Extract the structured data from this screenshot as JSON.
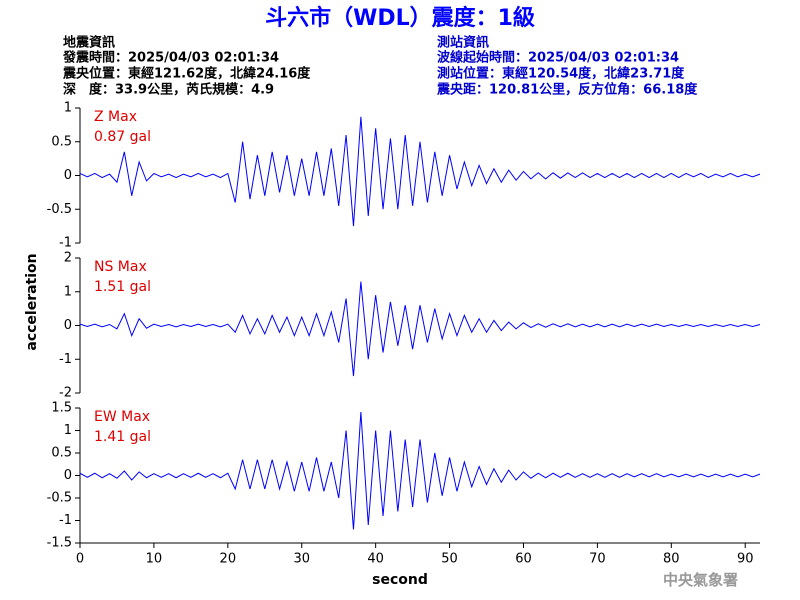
{
  "header": {
    "title": "斗六市（WDL）震度：1級",
    "left": [
      "地震資訊",
      "發震時間：2025/04/03 02:01:34",
      "震央位置：東經121.62度，北緯24.16度",
      "深　度：33.9公里，芮氏規模：4.9"
    ],
    "right": [
      "測站資訊",
      "波線起始時間：2025/04/03 02:01:34",
      "測站位置：東經120.54度，北緯23.71度",
      "震央距：120.81公里，反方位角：66.18度"
    ]
  },
  "y_axis_label": "acceleration",
  "footer": "中央氣象署",
  "chart_data": [
    {
      "type": "line",
      "annotation": [
        "Z Max",
        "0.87 gal"
      ],
      "color": "#0000ff",
      "xlim": [
        0,
        92
      ],
      "ylim": [
        -1,
        1
      ],
      "yticks": [
        -1,
        -0.5,
        0,
        0.5,
        1
      ],
      "x": [
        0,
        1,
        2,
        3,
        4,
        5,
        6,
        7,
        8,
        9,
        10,
        11,
        12,
        13,
        14,
        15,
        16,
        17,
        18,
        19,
        20,
        21,
        22,
        23,
        24,
        25,
        26,
        27,
        28,
        29,
        30,
        31,
        32,
        33,
        34,
        35,
        36,
        37,
        38,
        39,
        40,
        41,
        42,
        43,
        44,
        45,
        46,
        47,
        48,
        49,
        50,
        51,
        52,
        53,
        54,
        55,
        56,
        57,
        58,
        59,
        60,
        61,
        62,
        63,
        64,
        65,
        66,
        67,
        68,
        69,
        70,
        71,
        72,
        73,
        74,
        75,
        76,
        77,
        78,
        79,
        80,
        81,
        82,
        83,
        84,
        85,
        86,
        87,
        88,
        89,
        90,
        91,
        92
      ],
      "values": [
        0.03,
        -0.02,
        0.03,
        -0.03,
        0.02,
        -0.1,
        0.35,
        -0.3,
        0.2,
        -0.08,
        0.03,
        -0.02,
        0.02,
        -0.03,
        0.02,
        -0.02,
        0.03,
        -0.02,
        0.02,
        -0.03,
        0.03,
        -0.4,
        0.5,
        -0.35,
        0.3,
        -0.3,
        0.35,
        -0.25,
        0.3,
        -0.3,
        0.25,
        -0.3,
        0.35,
        -0.3,
        0.4,
        -0.45,
        0.6,
        -0.75,
        0.87,
        -0.6,
        0.7,
        -0.5,
        0.55,
        -0.5,
        0.6,
        -0.45,
        0.5,
        -0.4,
        0.35,
        -0.3,
        0.3,
        -0.2,
        0.2,
        -0.15,
        0.15,
        -0.12,
        0.1,
        -0.1,
        0.08,
        -0.07,
        0.06,
        -0.05,
        0.04,
        -0.05,
        0.04,
        -0.04,
        0.04,
        -0.03,
        0.04,
        -0.03,
        0.03,
        -0.03,
        0.03,
        -0.03,
        0.03,
        -0.03,
        0.03,
        -0.03,
        0.03,
        -0.03,
        0.03,
        -0.03,
        0.03,
        -0.02,
        0.03,
        -0.03,
        0.02,
        -0.02,
        0.03,
        -0.02,
        0.02,
        -0.02,
        0.02
      ]
    },
    {
      "type": "line",
      "annotation": [
        "NS Max",
        "1.51 gal"
      ],
      "color": "#0000ff",
      "xlim": [
        0,
        92
      ],
      "ylim": [
        -2,
        2
      ],
      "yticks": [
        -2,
        -1,
        0,
        1,
        2
      ],
      "x": [
        0,
        1,
        2,
        3,
        4,
        5,
        6,
        7,
        8,
        9,
        10,
        11,
        12,
        13,
        14,
        15,
        16,
        17,
        18,
        19,
        20,
        21,
        22,
        23,
        24,
        25,
        26,
        27,
        28,
        29,
        30,
        31,
        32,
        33,
        34,
        35,
        36,
        37,
        38,
        39,
        40,
        41,
        42,
        43,
        44,
        45,
        46,
        47,
        48,
        49,
        50,
        51,
        52,
        53,
        54,
        55,
        56,
        57,
        58,
        59,
        60,
        61,
        62,
        63,
        64,
        65,
        66,
        67,
        68,
        69,
        70,
        71,
        72,
        73,
        74,
        75,
        76,
        77,
        78,
        79,
        80,
        81,
        82,
        83,
        84,
        85,
        86,
        87,
        88,
        89,
        90,
        91,
        92
      ],
      "values": [
        0.04,
        -0.03,
        0.04,
        -0.04,
        0.03,
        -0.1,
        0.35,
        -0.3,
        0.2,
        -0.08,
        0.04,
        -0.03,
        0.03,
        -0.04,
        0.03,
        -0.03,
        0.04,
        -0.03,
        0.03,
        -0.04,
        0.04,
        -0.2,
        0.3,
        -0.25,
        0.2,
        -0.25,
        0.3,
        -0.2,
        0.25,
        -0.3,
        0.25,
        -0.3,
        0.35,
        -0.3,
        0.4,
        -0.5,
        0.8,
        -1.5,
        1.3,
        -1.0,
        0.9,
        -0.8,
        0.7,
        -0.6,
        0.6,
        -0.7,
        0.6,
        -0.5,
        0.5,
        -0.4,
        0.35,
        -0.3,
        0.3,
        -0.2,
        0.2,
        -0.2,
        0.15,
        -0.15,
        0.1,
        -0.1,
        0.08,
        -0.06,
        0.05,
        -0.05,
        0.05,
        -0.04,
        0.05,
        -0.04,
        0.04,
        -0.04,
        0.04,
        -0.04,
        0.04,
        -0.04,
        0.04,
        -0.03,
        0.04,
        -0.03,
        0.04,
        -0.03,
        0.03,
        -0.03,
        0.03,
        -0.03,
        0.03,
        -0.03,
        0.03,
        -0.03,
        0.03,
        -0.03,
        0.03,
        -0.03,
        0.03
      ]
    },
    {
      "type": "line",
      "annotation": [
        "EW Max",
        "1.41 gal"
      ],
      "color": "#0000ff",
      "xlim": [
        0,
        92
      ],
      "ylim": [
        -1.5,
        1.5
      ],
      "yticks": [
        -1.5,
        -1,
        -0.5,
        0,
        0.5,
        1,
        1.5
      ],
      "xticks": [
        0,
        10,
        20,
        30,
        40,
        50,
        60,
        70,
        80,
        90
      ],
      "xlabel": "second",
      "x": [
        0,
        1,
        2,
        3,
        4,
        5,
        6,
        7,
        8,
        9,
        10,
        11,
        12,
        13,
        14,
        15,
        16,
        17,
        18,
        19,
        20,
        21,
        22,
        23,
        24,
        25,
        26,
        27,
        28,
        29,
        30,
        31,
        32,
        33,
        34,
        35,
        36,
        37,
        38,
        39,
        40,
        41,
        42,
        43,
        44,
        45,
        46,
        47,
        48,
        49,
        50,
        51,
        52,
        53,
        54,
        55,
        56,
        57,
        58,
        59,
        60,
        61,
        62,
        63,
        64,
        65,
        66,
        67,
        68,
        69,
        70,
        71,
        72,
        73,
        74,
        75,
        76,
        77,
        78,
        79,
        80,
        81,
        82,
        83,
        84,
        85,
        86,
        87,
        88,
        89,
        90,
        91,
        92
      ],
      "values": [
        0.05,
        -0.04,
        0.05,
        -0.05,
        0.04,
        -0.06,
        0.1,
        -0.1,
        0.08,
        -0.05,
        0.04,
        -0.04,
        0.04,
        -0.05,
        0.04,
        -0.04,
        0.05,
        -0.04,
        0.04,
        -0.05,
        0.05,
        -0.3,
        0.35,
        -0.3,
        0.35,
        -0.3,
        0.35,
        -0.3,
        0.3,
        -0.35,
        0.3,
        -0.35,
        0.4,
        -0.35,
        0.3,
        -0.5,
        1.0,
        -1.2,
        1.41,
        -1.1,
        1.0,
        -0.9,
        1.0,
        -0.8,
        0.8,
        -0.7,
        0.8,
        -0.6,
        0.5,
        -0.45,
        0.4,
        -0.35,
        0.3,
        -0.25,
        0.2,
        -0.2,
        0.15,
        -0.15,
        0.12,
        -0.1,
        0.08,
        -0.06,
        0.05,
        -0.05,
        0.05,
        -0.04,
        0.05,
        -0.04,
        0.04,
        -0.04,
        0.04,
        -0.04,
        0.04,
        -0.04,
        0.04,
        -0.03,
        0.04,
        -0.03,
        0.04,
        -0.03,
        0.03,
        -0.03,
        0.03,
        -0.03,
        0.03,
        -0.03,
        0.03,
        -0.03,
        0.03,
        -0.03,
        0.03,
        -0.03,
        0.03
      ]
    }
  ]
}
